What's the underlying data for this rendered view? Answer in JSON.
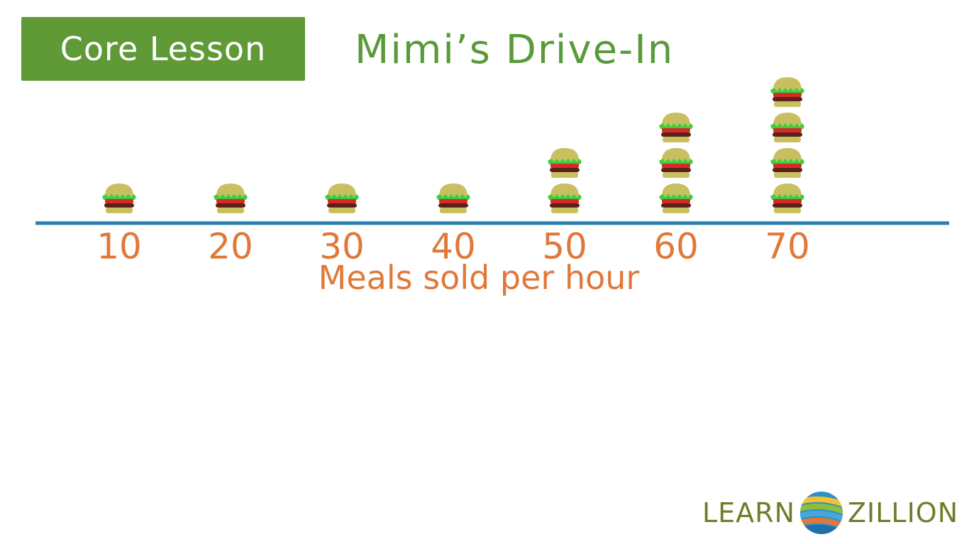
{
  "header": {
    "badge_label": "Core Lesson",
    "title": "Mimi’s Drive-In"
  },
  "chart_data": {
    "type": "pictograph",
    "title": "Mimi’s Drive-In",
    "xlabel": "Meals sold per hour",
    "ylabel": "",
    "symbol": "hamburger-icon",
    "categories": [
      "10",
      "20",
      "30",
      "40",
      "50",
      "60",
      "70"
    ],
    "values": [
      1,
      1,
      1,
      1,
      2,
      3,
      4
    ],
    "grid": false
  },
  "logo": {
    "left_text": "LEARN",
    "right_text": "ZILLION",
    "mark": "learnzillion-logo-icon"
  },
  "colors": {
    "badge_bg": "#5f9a37",
    "title": "#5a9a3a",
    "axis_line": "#2a7fb0",
    "axis_text": "#e0783a",
    "bun": "#c8c060",
    "lettuce": "#3ecf3a",
    "tomato": "#d62a2a",
    "patty": "#5a2218",
    "logo_text": "#6b7f2a"
  }
}
